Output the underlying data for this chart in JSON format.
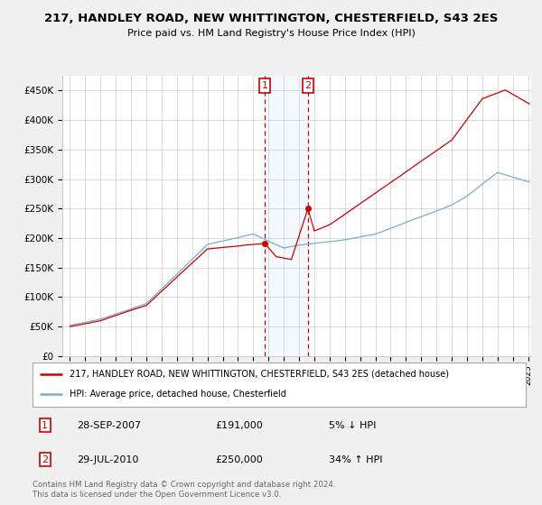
{
  "title": "217, HANDLEY ROAD, NEW WHITTINGTON, CHESTERFIELD, S43 2ES",
  "subtitle": "Price paid vs. HM Land Registry's House Price Index (HPI)",
  "legend_label_red": "217, HANDLEY ROAD, NEW WHITTINGTON, CHESTERFIELD, S43 2ES (detached house)",
  "legend_label_blue": "HPI: Average price, detached house, Chesterfield",
  "footer": "Contains HM Land Registry data © Crown copyright and database right 2024.\nThis data is licensed under the Open Government Licence v3.0.",
  "transactions": [
    {
      "num": 1,
      "date": "28-SEP-2007",
      "price": 191000,
      "pct": "5%",
      "dir": "↓",
      "year": 2007.75
    },
    {
      "num": 2,
      "date": "29-JUL-2010",
      "price": 250000,
      "pct": "34%",
      "dir": "↑",
      "year": 2010.58
    }
  ],
  "ylim": [
    0,
    475000
  ],
  "yticks": [
    0,
    50000,
    100000,
    150000,
    200000,
    250000,
    300000,
    350000,
    400000,
    450000
  ],
  "ytick_labels": [
    "£0",
    "£50K",
    "£100K",
    "£150K",
    "£200K",
    "£250K",
    "£300K",
    "£350K",
    "£400K",
    "£450K"
  ],
  "xlim_start": 1994.5,
  "xlim_end": 2025.2,
  "bg_color": "#f0f0f0",
  "plot_bg": "#ffffff",
  "grid_color": "#cccccc",
  "red_color": "#cc0000",
  "blue_color": "#7aadcf",
  "transaction_box_color": "#cc0000",
  "vspan_color": "#ddeeff",
  "vline_color": "#cc0000"
}
